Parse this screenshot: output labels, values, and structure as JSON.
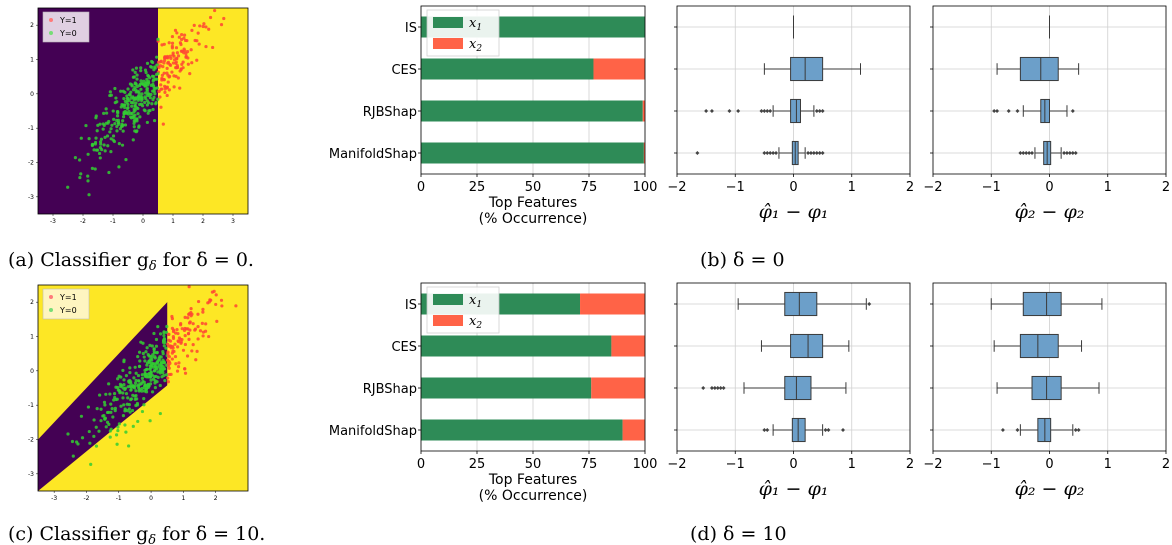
{
  "colors": {
    "class_one": "#fde725",
    "class_zero": "#440154",
    "point_y1": "#ff4433",
    "point_y0": "#33cc33",
    "bar_x1": "#2e8b57",
    "bar_x2": "#ff6347",
    "box_fill": "#6c9fc9",
    "box_edge": "#3a3a3a",
    "grid": "#cfcfcf"
  },
  "captions": {
    "a": "(a) Classifier g",
    "a_sub": "δ",
    "a_rest": " for δ = 0.",
    "b": "(b) δ = 0",
    "c": "(c) Classifier g",
    "c_sub": "δ",
    "c_rest": " for δ = 10.",
    "d": "(d) δ = 10"
  },
  "scatter_legend": {
    "y1": "Y=1",
    "y0": "Y=0"
  },
  "scatter_ticks": {
    "a_x": [
      "-3",
      "-2",
      "-1",
      "0",
      "1",
      "2",
      "3"
    ],
    "a_y": [
      "2",
      "1",
      "0",
      "-1",
      "-2",
      "-3"
    ],
    "c_x": [
      "-3",
      "-2",
      "-1",
      "0",
      "1",
      "2"
    ],
    "c_y": [
      "2",
      "1",
      "0",
      "-1",
      "-2",
      "-3"
    ]
  },
  "bar_legend": {
    "x1": "x",
    "x1_sub": "1",
    "x2": "x",
    "x2_sub": "2"
  },
  "bar_xlabel": [
    "Top Features",
    "(% Occurrence)"
  ],
  "bar_xticks": [
    "0",
    "25",
    "50",
    "75",
    "100"
  ],
  "box_xticks": [
    "−2",
    "−1",
    "0",
    "1",
    "2"
  ],
  "box_xlabels": {
    "phi1": "φ̂₁ − φ₁",
    "phi2": "φ̂₂ − φ₂"
  },
  "chart_data": [
    {
      "type": "scatter",
      "panel": "a",
      "legend": [
        "Y=1",
        "Y=0"
      ],
      "xlim": [
        -3.5,
        3.5
      ],
      "ylim": [
        -3.5,
        2.5
      ],
      "decision_region": "yellow (class 1) where x1 > 0.5; purple elsewhere"
    },
    {
      "type": "bar",
      "panel": "b-left",
      "categories": [
        "IS",
        "CES",
        "RJBShap",
        "ManifoldShap"
      ],
      "series": [
        {
          "name": "x1",
          "values": [
            100,
            77,
            99,
            99.5
          ]
        },
        {
          "name": "x2",
          "values": [
            0,
            23,
            1,
            0.5
          ]
        }
      ],
      "xlabel": "Top Features\n(% Occurrence)",
      "xlim": [
        0,
        100
      ]
    },
    {
      "type": "box",
      "panel": "b-middle",
      "categories": [
        "IS",
        "CES",
        "RJBShap",
        "ManifoldShap"
      ],
      "xlabel": "φ̂1 − φ1",
      "xlim": [
        -2,
        2
      ],
      "boxes": [
        {
          "q1": 0,
          "med": 0,
          "q3": 0,
          "lo": 0,
          "hi": 0,
          "outliers": []
        },
        {
          "q1": -0.05,
          "med": 0.2,
          "q3": 0.5,
          "lo": -0.5,
          "hi": 1.15,
          "outliers": []
        },
        {
          "q1": -0.05,
          "med": 0.05,
          "q3": 0.12,
          "lo": -0.35,
          "hi": 0.35,
          "outliers": [
            -1.5,
            -1.4,
            -1.1,
            -0.95,
            -0.55,
            -0.5,
            -0.45,
            -0.4,
            0.4,
            0.45,
            0.5
          ]
        },
        {
          "q1": -0.02,
          "med": 0.03,
          "q3": 0.08,
          "lo": -0.25,
          "hi": 0.2,
          "outliers": [
            -1.65,
            -0.5,
            -0.45,
            -0.4,
            -0.35,
            -0.3,
            0.25,
            0.3,
            0.35,
            0.4,
            0.45,
            0.5
          ]
        }
      ]
    },
    {
      "type": "box",
      "panel": "b-right",
      "categories": [
        "IS",
        "CES",
        "RJBShap",
        "ManifoldShap"
      ],
      "xlabel": "φ̂2 − φ2",
      "xlim": [
        -2,
        2
      ],
      "boxes": [
        {
          "q1": 0,
          "med": 0,
          "q3": 0,
          "lo": 0,
          "hi": 0,
          "outliers": []
        },
        {
          "q1": -0.5,
          "med": -0.15,
          "q3": 0.15,
          "lo": -0.9,
          "hi": 0.5,
          "outliers": []
        },
        {
          "q1": -0.15,
          "med": -0.08,
          "q3": 0.0,
          "lo": -0.45,
          "hi": 0.3,
          "outliers": [
            -0.95,
            -0.9,
            -0.7,
            -0.55,
            0.4
          ]
        },
        {
          "q1": -0.1,
          "med": -0.04,
          "q3": 0.02,
          "lo": -0.25,
          "hi": 0.2,
          "outliers": [
            -0.5,
            -0.45,
            -0.4,
            -0.35,
            -0.3,
            0.25,
            0.3,
            0.35,
            0.4,
            0.45
          ]
        }
      ]
    },
    {
      "type": "scatter",
      "panel": "c",
      "legend": [
        "Y=1",
        "Y=0"
      ],
      "xlim": [
        -3.5,
        3.0
      ],
      "ylim": [
        -3.5,
        2.5
      ],
      "decision_region": "yellow (class 1) in upper-left triangle (x2 > x1 + 1.5), lower-right triangle (x2 < x1 - 1.5) and right strip x1 > 0.5; purple diagonal band otherwise"
    },
    {
      "type": "bar",
      "panel": "d-left",
      "categories": [
        "IS",
        "CES",
        "RJBShap",
        "ManifoldShap"
      ],
      "series": [
        {
          "name": "x1",
          "values": [
            71,
            85,
            76,
            90
          ]
        },
        {
          "name": "x2",
          "values": [
            29,
            15,
            24,
            10
          ]
        }
      ],
      "xlabel": "Top Features\n(% Occurrence)",
      "xlim": [
        0,
        100
      ]
    },
    {
      "type": "box",
      "panel": "d-middle",
      "categories": [
        "IS",
        "CES",
        "RJBShap",
        "ManifoldShap"
      ],
      "xlabel": "φ̂1 − φ1",
      "xlim": [
        -2,
        2
      ],
      "boxes": [
        {
          "q1": -0.15,
          "med": 0.1,
          "q3": 0.4,
          "lo": -0.95,
          "hi": 1.25,
          "outliers": [
            1.3
          ]
        },
        {
          "q1": -0.05,
          "med": 0.25,
          "q3": 0.5,
          "lo": -0.55,
          "hi": 0.95,
          "outliers": []
        },
        {
          "q1": -0.15,
          "med": 0.05,
          "q3": 0.3,
          "lo": -0.85,
          "hi": 0.9,
          "outliers": [
            -1.55,
            -1.4,
            -1.35,
            -1.3,
            -1.25,
            -1.2
          ]
        },
        {
          "q1": -0.02,
          "med": 0.08,
          "q3": 0.2,
          "lo": -0.35,
          "hi": 0.5,
          "outliers": [
            -0.5,
            -0.45,
            0.55,
            0.6,
            0.85
          ]
        }
      ]
    },
    {
      "type": "box",
      "panel": "d-right",
      "categories": [
        "IS",
        "CES",
        "RJBShap",
        "ManifoldShap"
      ],
      "xlabel": "φ̂2 − φ2",
      "xlim": [
        -2,
        2
      ],
      "boxes": [
        {
          "q1": -0.45,
          "med": -0.05,
          "q3": 0.2,
          "lo": -1.0,
          "hi": 0.9,
          "outliers": []
        },
        {
          "q1": -0.5,
          "med": -0.2,
          "q3": 0.15,
          "lo": -0.95,
          "hi": 0.55,
          "outliers": []
        },
        {
          "q1": -0.3,
          "med": -0.05,
          "q3": 0.2,
          "lo": -0.9,
          "hi": 0.85,
          "outliers": []
        },
        {
          "q1": -0.2,
          "med": -0.08,
          "q3": 0.02,
          "lo": -0.5,
          "hi": 0.4,
          "outliers": [
            -0.8,
            -0.55,
            0.45,
            0.5
          ]
        }
      ]
    }
  ]
}
